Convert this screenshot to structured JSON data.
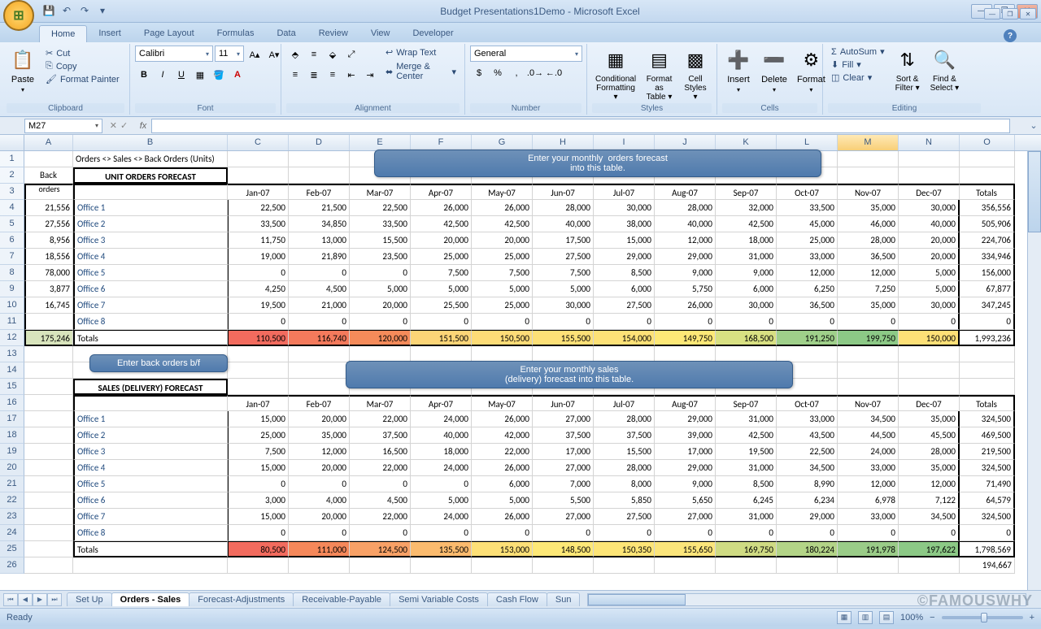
{
  "window": {
    "title": "Budget Presentations1Demo - Microsoft Excel",
    "qat": [
      "💾",
      "↶",
      "↷",
      "▾"
    ]
  },
  "tabs": [
    "Home",
    "Insert",
    "Page Layout",
    "Formulas",
    "Data",
    "Review",
    "View",
    "Developer"
  ],
  "active_tab": "Home",
  "ribbon": {
    "clipboard": {
      "label": "Clipboard",
      "paste": "Paste",
      "cut": "Cut",
      "copy": "Copy",
      "painter": "Format Painter"
    },
    "font": {
      "label": "Font",
      "name": "Calibri",
      "size": "11"
    },
    "alignment": {
      "label": "Alignment",
      "wrap": "Wrap Text",
      "merge": "Merge & Center"
    },
    "number": {
      "label": "Number",
      "format": "General"
    },
    "styles": {
      "label": "Styles",
      "cond": "Conditional Formatting",
      "table": "Format as Table",
      "cell": "Cell Styles"
    },
    "cells": {
      "label": "Cells",
      "insert": "Insert",
      "delete": "Delete",
      "format": "Format"
    },
    "editing": {
      "label": "Editing",
      "autosum": "AutoSum",
      "fill": "Fill",
      "clear": "Clear",
      "sort": "Sort & Filter",
      "find": "Find & Select"
    }
  },
  "name_box": "M27",
  "columns": {
    "letters": [
      "A",
      "B",
      "C",
      "D",
      "E",
      "F",
      "G",
      "H",
      "I",
      "J",
      "K",
      "L",
      "M",
      "N",
      "O"
    ],
    "widths": [
      60,
      190,
      75,
      75,
      75,
      75,
      75,
      75,
      75,
      75,
      75,
      75,
      75,
      75,
      68
    ],
    "selected": "M"
  },
  "row_count": 26,
  "worksheet": {
    "title_b1": "Orders <> Sales <> Back Orders (Units)",
    "section1_header": "UNIT ORDERS FORECAST",
    "section2_header": "SALES (DELIVERY) FORECAST",
    "back_orders_label": "Back orders",
    "months": [
      "Jan-07",
      "Feb-07",
      "Mar-07",
      "Apr-07",
      "May-07",
      "Jun-07",
      "Jul-07",
      "Aug-07",
      "Sep-07",
      "Oct-07",
      "Nov-07",
      "Dec-07"
    ],
    "totals_label": "Totals",
    "callout1": "Enter your monthly  orders forecast into this table.",
    "callout2": "Enter back orders b/f",
    "callout3": "Enter your monthly sales (delivery) forecast into this table.",
    "orders": {
      "back": [
        "21,556",
        "27,556",
        "8,956",
        "18,556",
        "78,000",
        "3,877",
        "16,745",
        ""
      ],
      "offices": [
        "Office 1",
        "Office 2",
        "Office 3",
        "Office 4",
        "Office 5",
        "Office 6",
        "Office 7",
        "Office 8"
      ],
      "rows": [
        [
          "22,500",
          "21,500",
          "22,500",
          "26,000",
          "26,000",
          "28,000",
          "30,000",
          "28,000",
          "32,000",
          "33,500",
          "35,000",
          "30,000",
          "356,556"
        ],
        [
          "33,500",
          "34,850",
          "33,500",
          "42,500",
          "42,500",
          "40,000",
          "38,000",
          "40,000",
          "42,500",
          "45,000",
          "46,000",
          "40,000",
          "505,906"
        ],
        [
          "11,750",
          "13,000",
          "15,500",
          "20,000",
          "20,000",
          "17,500",
          "15,000",
          "12,000",
          "18,000",
          "25,000",
          "28,000",
          "20,000",
          "224,706"
        ],
        [
          "19,000",
          "21,890",
          "23,500",
          "25,000",
          "25,000",
          "27,500",
          "29,000",
          "29,000",
          "31,000",
          "33,000",
          "36,500",
          "20,000",
          "334,946"
        ],
        [
          "0",
          "0",
          "0",
          "7,500",
          "7,500",
          "7,500",
          "8,500",
          "9,000",
          "9,000",
          "12,000",
          "12,000",
          "5,000",
          "156,000"
        ],
        [
          "4,250",
          "4,500",
          "5,000",
          "5,000",
          "5,000",
          "5,000",
          "6,000",
          "5,750",
          "6,000",
          "6,250",
          "7,250",
          "5,000",
          "67,877"
        ],
        [
          "19,500",
          "21,000",
          "20,000",
          "25,500",
          "25,000",
          "30,000",
          "27,500",
          "26,000",
          "30,000",
          "36,500",
          "35,000",
          "30,000",
          "347,245"
        ],
        [
          "0",
          "0",
          "0",
          "0",
          "0",
          "0",
          "0",
          "0",
          "0",
          "0",
          "0",
          "0",
          "0"
        ]
      ],
      "totals_row": [
        "110,500",
        "116,740",
        "120,000",
        "151,500",
        "150,500",
        "155,500",
        "154,000",
        "149,750",
        "168,500",
        "191,250",
        "199,750",
        "150,000",
        "1,993,236"
      ],
      "totals_back": "175,246",
      "totals_colors": [
        "#f26b5e",
        "#f47a5c",
        "#f58b5a",
        "#fcd577",
        "#fddc77",
        "#fde077",
        "#fde177",
        "#fde877",
        "#d8e082",
        "#9fd08a",
        "#8cc986",
        "#fde077"
      ]
    },
    "sales": {
      "rows": [
        [
          "15,000",
          "20,000",
          "22,000",
          "24,000",
          "26,000",
          "27,000",
          "28,000",
          "29,000",
          "31,000",
          "33,000",
          "34,500",
          "35,000",
          "324,500"
        ],
        [
          "25,000",
          "35,000",
          "37,500",
          "40,000",
          "42,000",
          "37,500",
          "37,500",
          "39,000",
          "42,500",
          "43,500",
          "44,500",
          "45,500",
          "469,500"
        ],
        [
          "7,500",
          "12,000",
          "16,500",
          "18,000",
          "22,000",
          "17,000",
          "15,500",
          "17,000",
          "19,500",
          "22,500",
          "24,000",
          "28,000",
          "219,500"
        ],
        [
          "15,000",
          "20,000",
          "22,000",
          "24,000",
          "26,000",
          "27,000",
          "28,000",
          "29,000",
          "31,000",
          "34,500",
          "33,000",
          "35,000",
          "324,500"
        ],
        [
          "0",
          "0",
          "0",
          "0",
          "6,000",
          "7,000",
          "8,000",
          "9,000",
          "8,500",
          "8,990",
          "12,000",
          "12,000",
          "71,490"
        ],
        [
          "3,000",
          "4,000",
          "4,500",
          "5,000",
          "5,000",
          "5,500",
          "5,850",
          "5,650",
          "6,245",
          "6,234",
          "6,978",
          "7,122",
          "64,579"
        ],
        [
          "15,000",
          "20,000",
          "22,000",
          "24,000",
          "26,000",
          "27,000",
          "27,500",
          "27,000",
          "31,000",
          "29,000",
          "33,000",
          "34,500",
          "324,500"
        ],
        [
          "0",
          "0",
          "0",
          "0",
          "0",
          "0",
          "0",
          "0",
          "0",
          "0",
          "0",
          "0",
          "0"
        ]
      ],
      "totals_row": [
        "80,500",
        "111,000",
        "124,500",
        "135,500",
        "153,000",
        "148,500",
        "150,350",
        "155,650",
        "169,750",
        "180,224",
        "191,978",
        "197,622",
        "1,798,569"
      ],
      "totals_colors": [
        "#f26b5e",
        "#f5885a",
        "#f8a166",
        "#fbbb6e",
        "#fde077",
        "#fde877",
        "#fde577",
        "#fbe57b",
        "#cfdb83",
        "#b3d487",
        "#9acc88",
        "#8cc986"
      ],
      "extra_total": "194,667"
    }
  },
  "sheets": {
    "list": [
      "Set Up",
      "Orders - Sales",
      "Forecast-Adjustments",
      "Receivable-Payable",
      "Semi Variable Costs",
      "Cash Flow",
      "Sun"
    ],
    "active": "Orders - Sales"
  },
  "status": {
    "text": "Ready",
    "zoom": "100%"
  },
  "watermark": "©FAMOUSWHY"
}
